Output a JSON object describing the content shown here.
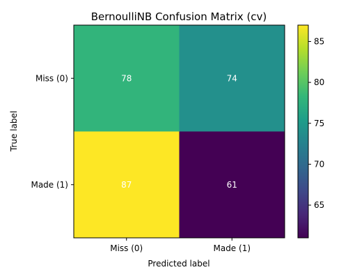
{
  "chart_data": {
    "type": "heatmap",
    "title": "BernoulliNB Confusion Matrix (cv)",
    "xlabel": "Predicted label",
    "ylabel": "True label",
    "x_categories": [
      "Miss (0)",
      "Made (1)"
    ],
    "y_categories": [
      "Miss (0)",
      "Made (1)"
    ],
    "values": [
      [
        78,
        74
      ],
      [
        87,
        61
      ]
    ],
    "colormap": "viridis",
    "vmin": 61,
    "vmax": 87,
    "colorbar_ticks": [
      65,
      70,
      75,
      80,
      85
    ],
    "cell_label_colors": [
      "#ffffff",
      "#ffffff",
      "#ffffff",
      "#ffffff"
    ],
    "grid": false
  }
}
